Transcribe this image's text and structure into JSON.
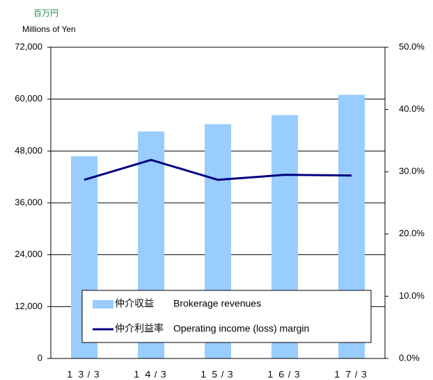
{
  "chart_data": {
    "type": "bar",
    "y_label": "百万円",
    "y_label_en": "Millions of Yen",
    "categories": [
      "１３/３",
      "１４/３",
      "１５/３",
      "１６/３",
      "１７/３"
    ],
    "series": [
      {
        "name": "仲介収益　　Brokerage revenues",
        "type": "bar",
        "color": "#99ccff",
        "values": [
          46800,
          52500,
          54200,
          56300,
          61000
        ]
      },
      {
        "name": "仲介利益率　Operating income (loss) margin",
        "type": "line",
        "axis": "y2",
        "color": "#000080",
        "values": [
          28.7,
          31.9,
          28.7,
          29.5,
          29.4
        ]
      }
    ],
    "ylim": [
      0,
      72000
    ],
    "yticks": [
      0,
      {
        "value": 12000,
        "label": "12,000"
      },
      {
        "value": 24000,
        "label": "24,000"
      },
      {
        "value": 36000,
        "label": "36,000"
      },
      {
        "value": 48000,
        "label": "48,000"
      },
      {
        "value": 60000,
        "label": "60,000"
      },
      {
        "value": 72000,
        "label": "72,000"
      }
    ],
    "y2lim": [
      0,
      50
    ],
    "y2ticks": [
      {
        "value": 0,
        "label": "0.0%"
      },
      {
        "value": 10,
        "label": "10.0%"
      },
      {
        "value": 20,
        "label": "20.0%"
      },
      {
        "value": 30,
        "label": "30.0%"
      },
      {
        "value": 40,
        "label": "40.0%"
      },
      {
        "value": 50,
        "label": "50.0%"
      }
    ],
    "grid": true,
    "legend": "bottom"
  }
}
